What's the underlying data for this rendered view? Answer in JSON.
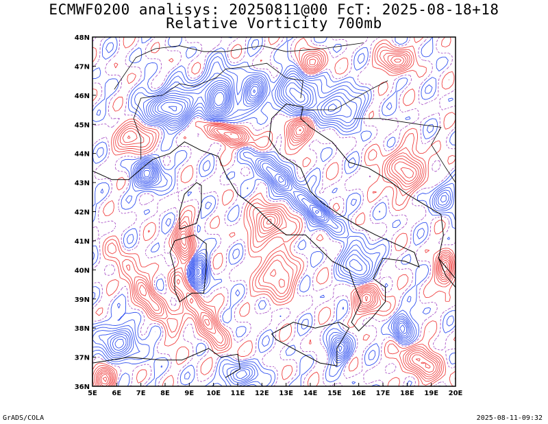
{
  "title_line1": "ECMWF0200 analisys: 20250811@00 FcT: 2025-08-18+18",
  "title_line2": "Relative Vorticity 700mb",
  "footer_left": "GrADS/COLA",
  "footer_right": "2025-08-11-09:32",
  "map": {
    "lon_range": [
      5,
      20
    ],
    "lat_range": [
      36,
      48
    ],
    "lon_labels": [
      "5E",
      "6E",
      "7E",
      "8E",
      "9E",
      "10E",
      "11E",
      "12E",
      "13E",
      "14E",
      "15E",
      "16E",
      "17E",
      "18E",
      "19E",
      "20E"
    ],
    "lat_labels": [
      "36N",
      "37N",
      "38N",
      "39N",
      "40N",
      "41N",
      "42N",
      "43N",
      "44N",
      "45N",
      "46N",
      "47N",
      "48N"
    ],
    "colors": {
      "positive_contour": "#f04040",
      "negative_contour": "#3050f0",
      "zero_contour": "#a040c0",
      "coastline": "#000000"
    }
  }
}
